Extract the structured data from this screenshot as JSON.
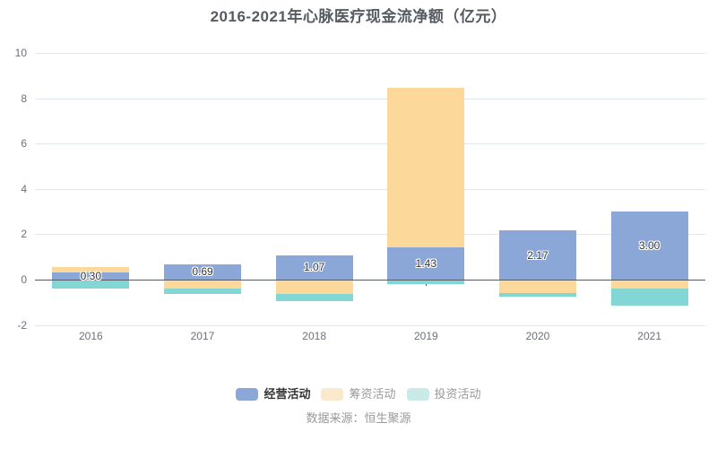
{
  "title": "2016-2021年心脉医疗现金流净额（亿元）",
  "source_note": "数据来源：恒生聚源",
  "chart_data": {
    "type": "bar",
    "stacked": true,
    "title": "2016-2021年心脉医疗现金流净额（亿元）",
    "categories": [
      "2016",
      "2017",
      "2018",
      "2019",
      "2020",
      "2021"
    ],
    "series": [
      {
        "name": "经营活动",
        "color": "#8BA7D8",
        "legend_color": "#8BA7D8",
        "legend_active": true,
        "show_labels": true,
        "values": [
          0.3,
          0.69,
          1.07,
          1.43,
          2.17,
          3.0
        ],
        "labels": [
          "0.30",
          "0.69",
          "1.07",
          "1.43",
          "2.17",
          "3.00"
        ]
      },
      {
        "name": "筹资活动",
        "color": "#FDD89B",
        "legend_color": "#FBE9CE",
        "legend_active": false,
        "show_labels": false,
        "values": [
          0.25,
          -0.37,
          -0.59,
          7.03,
          -0.55,
          -0.37
        ]
      },
      {
        "name": "投资活动",
        "color": "#82D6D3",
        "legend_color": "#C9EAE6",
        "legend_active": false,
        "show_labels": false,
        "values": [
          -0.36,
          -0.22,
          -0.3,
          -0.15,
          -0.18,
          -0.75
        ]
      }
    ],
    "xlabel": "",
    "ylabel": "",
    "ylim": [
      -2,
      10
    ],
    "yticks": [
      10,
      8,
      6,
      4,
      2,
      0,
      -2
    ],
    "grid": true,
    "legend_position": "bottom",
    "colors": {
      "grid_line": "#E0E6F1",
      "axis_line": "#555A63",
      "tick_label": "#6E7079",
      "value_label": "#333333",
      "legend_active_text": "#333333",
      "legend_inactive_text": "#999999"
    }
  }
}
